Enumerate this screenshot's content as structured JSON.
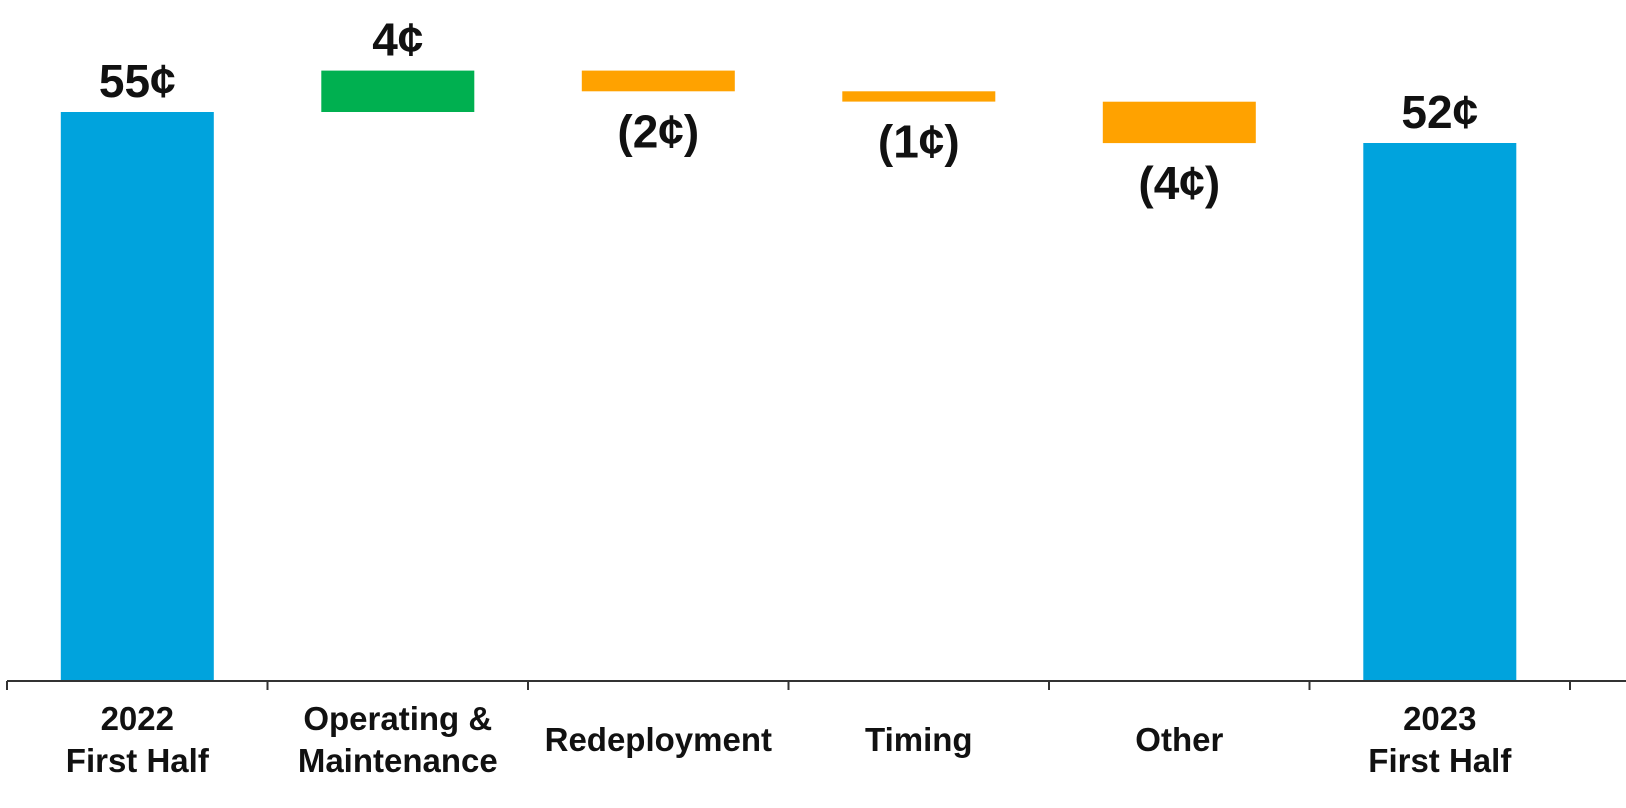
{
  "chart_data": {
    "type": "bar",
    "subtype": "waterfall",
    "categories": [
      [
        "2022",
        "First Half"
      ],
      [
        "Operating &",
        "Maintenance"
      ],
      [
        "Redeployment"
      ],
      [
        "Timing"
      ],
      [
        "Other"
      ],
      [
        "2023",
        "First Half"
      ]
    ],
    "values": [
      55,
      4,
      -2,
      -1,
      -4,
      52
    ],
    "kinds": [
      "total",
      "increase",
      "decrease",
      "decrease",
      "decrease",
      "total"
    ],
    "data_labels": [
      "55¢",
      "4¢",
      "(2¢)",
      "(1¢)",
      "(4¢)",
      "52¢"
    ],
    "unit": "¢",
    "title": "",
    "xlabel": "",
    "ylabel": "",
    "ylim": [
      0,
      62
    ],
    "grid": false,
    "legend": "none",
    "colors": {
      "total": "#00a3dd",
      "increase": "#00b050",
      "decrease": "#ffa200",
      "axis": "#333333",
      "text": "#111111"
    }
  }
}
